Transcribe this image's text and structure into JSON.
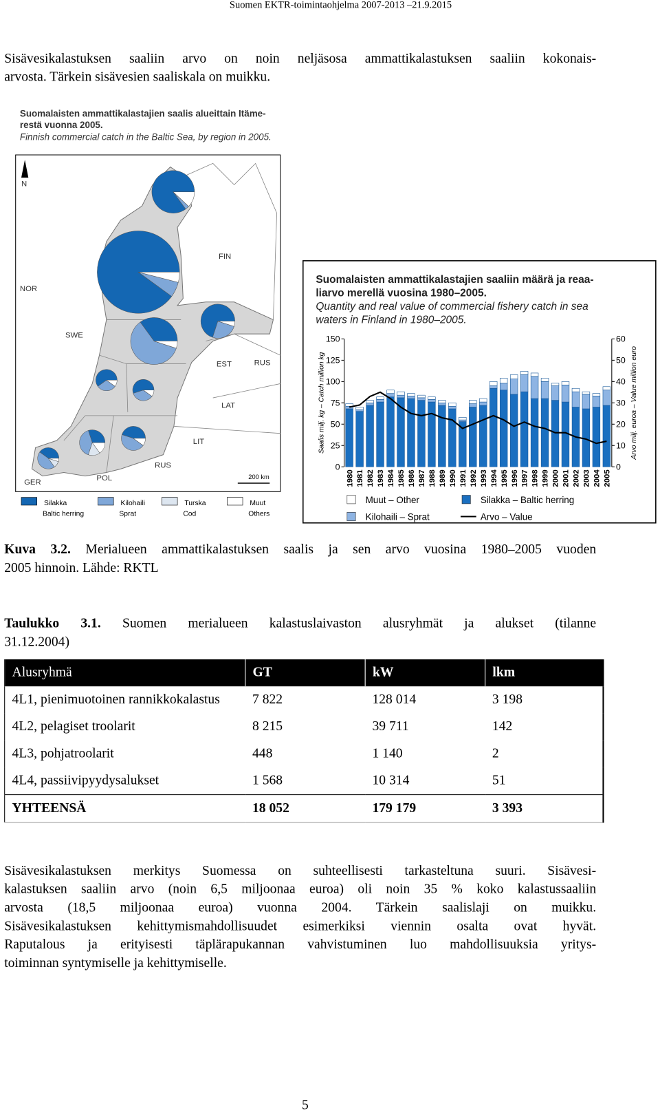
{
  "header": "Suomen EKTR-toimintaohjelma 2007-2013 –21.9.2015",
  "paragraph1": [
    "Sisävesikalastuksen saaliin arvo on noin neljäsosa ammattikalastuksen saaliin kokonais-",
    "arvosta. Tärkein sisävesien saaliskala on muikku."
  ],
  "map": {
    "title_lines": [
      "Suomalaisten ammattikalastajien saalis alueittain Itäme-",
      "restä vuonna 2005."
    ],
    "subtitle": "Finnish commercial catch in the Baltic Sea, by region in 2005.",
    "labels": [
      "N",
      "NOR",
      "SWE",
      "FIN",
      "EST",
      "RUS",
      "LAT",
      "LIT",
      "POL",
      "GER",
      "RUS"
    ],
    "scale": "200 km",
    "legend": [
      {
        "name": "Silakka",
        "name_en": "Baltic herring",
        "color": "#1467b3"
      },
      {
        "name": "Kilohaili",
        "name_en": "Sprat",
        "color": "#7fa7d8"
      },
      {
        "name": "Turska",
        "name_en": "Cod",
        "color": "#dde6f0"
      },
      {
        "name": "Muut",
        "name_en": "Others",
        "color": "#ffffff"
      }
    ],
    "pies": [
      [
        85,
        3,
        0,
        12
      ],
      [
        90,
        6,
        0,
        4
      ],
      [
        70,
        25,
        0,
        5
      ],
      [
        35,
        60,
        0,
        5
      ],
      [
        60,
        30,
        0,
        10
      ],
      [
        55,
        35,
        0,
        10
      ],
      [
        45,
        45,
        0,
        10
      ],
      [
        30,
        40,
        15,
        15
      ],
      [
        40,
        45,
        10,
        5
      ]
    ]
  },
  "chart_data": {
    "type": "bar",
    "stacked": true,
    "title_lines": [
      "Suomalaisten ammattikalastajien saaliin määrä ja reaa-",
      "liarvo merellä vuosina 1980–2005.",
      "Quantity and real value of commercial fishery catch in sea",
      "waters in Finland  in 1980–2005."
    ],
    "ylabel": "Saalis milj. kg – Catch million kg",
    "y2label": "Arvo milj. euroa – Value million euro",
    "categories": [
      "1980",
      "1981",
      "1982",
      "1983",
      "1984",
      "1985",
      "1986",
      "1987",
      "1988",
      "1989",
      "1990",
      "1991",
      "1992",
      "1993",
      "1994",
      "1995",
      "1996",
      "1997",
      "1998",
      "1999",
      "2000",
      "2001",
      "2002",
      "2003",
      "2004",
      "2005"
    ],
    "series": [
      {
        "name": "Silakka – Baltic herring",
        "color": "#1a6fc0",
        "values": [
          68,
          65,
          72,
          76,
          82,
          81,
          80,
          78,
          76,
          72,
          68,
          53,
          70,
          72,
          92,
          90,
          85,
          88,
          80,
          80,
          78,
          76,
          70,
          68,
          70,
          72
        ]
      },
      {
        "name": "Kilohaili – Sprat",
        "color": "#8eb4e3",
        "values": [
          3,
          2,
          3,
          3,
          4,
          3,
          3,
          3,
          3,
          3,
          3,
          2,
          4,
          4,
          3,
          8,
          18,
          20,
          26,
          20,
          17,
          20,
          18,
          17,
          13,
          18
        ]
      },
      {
        "name": "Muut – Other",
        "color": "#ffffff",
        "values": [
          3,
          3,
          3,
          3,
          4,
          4,
          3,
          3,
          3,
          3,
          4,
          3,
          4,
          4,
          5,
          6,
          5,
          4,
          4,
          4,
          3,
          4,
          4,
          3,
          3,
          4
        ]
      },
      {
        "name": "Arvo – Value",
        "type": "line",
        "axis": "y2",
        "color": "#000000",
        "values": [
          28,
          29,
          33,
          35,
          32,
          28,
          25,
          24,
          25,
          23,
          22,
          18,
          20,
          22,
          24,
          22,
          19,
          21,
          19,
          18,
          16,
          16,
          14,
          13,
          11,
          12
        ]
      }
    ],
    "ylim": [
      0,
      150
    ],
    "yticks": [
      0,
      25,
      50,
      75,
      100,
      125,
      150
    ],
    "y2lim": [
      0,
      60
    ],
    "y2ticks": [
      0,
      10,
      20,
      30,
      40,
      50,
      60
    ]
  },
  "figure_caption": {
    "label": "Kuva 3.2.",
    "lines": [
      "Merialueen ammattikalastuksen saalis ja sen arvo vuosina 1980–2005 vuoden",
      "2005 hinnoin. Lähde: RKTL"
    ]
  },
  "table_caption": {
    "label": "Taulukko 3.1.",
    "lines": [
      "Suomen merialueen kalastuslaivaston alusryhmät ja alukset (tilanne",
      "31.12.2004)"
    ]
  },
  "table": {
    "header": [
      "Alusryhmä",
      "GT",
      "kW",
      "lkm"
    ],
    "rows": [
      [
        "4L1, pienimuotoinen rannikkokalastus",
        "7 822",
        "128 014",
        "3 198"
      ],
      [
        "4L2, pelagiset troolarit",
        "8 215",
        "39 711",
        "142"
      ],
      [
        "4L3, pohjatroolarit",
        "448",
        "1 140",
        "2"
      ],
      [
        "4L4, passiivipyydysalukset",
        "1 568",
        "10 314",
        "51"
      ]
    ],
    "total": [
      "YHTEENSÄ",
      "18 052",
      "179 179",
      "3 393"
    ]
  },
  "paragraph2": [
    "Sisävesikalastuksen merkitys Suomessa on suhteellisesti tarkasteltuna suuri. Sisävesi-",
    "kalastuksen saaliin arvo (noin 6,5 miljoonaa euroa) oli noin 35 % koko kalastussaaliin",
    "arvosta (18,5 miljoonaa euroa) vuonna 2004. Tärkein saalislaji on muikku.",
    "Sisävesikalastuksen kehittymismahdollisuudet esimerkiksi viennin osalta ovat hyvät.",
    "Raputalous ja erityisesti täplärapukannan vahvistuminen luo mahdollisuuksia yritys-",
    "toiminnan syntymiselle ja kehittymiselle."
  ],
  "page_number": "5"
}
